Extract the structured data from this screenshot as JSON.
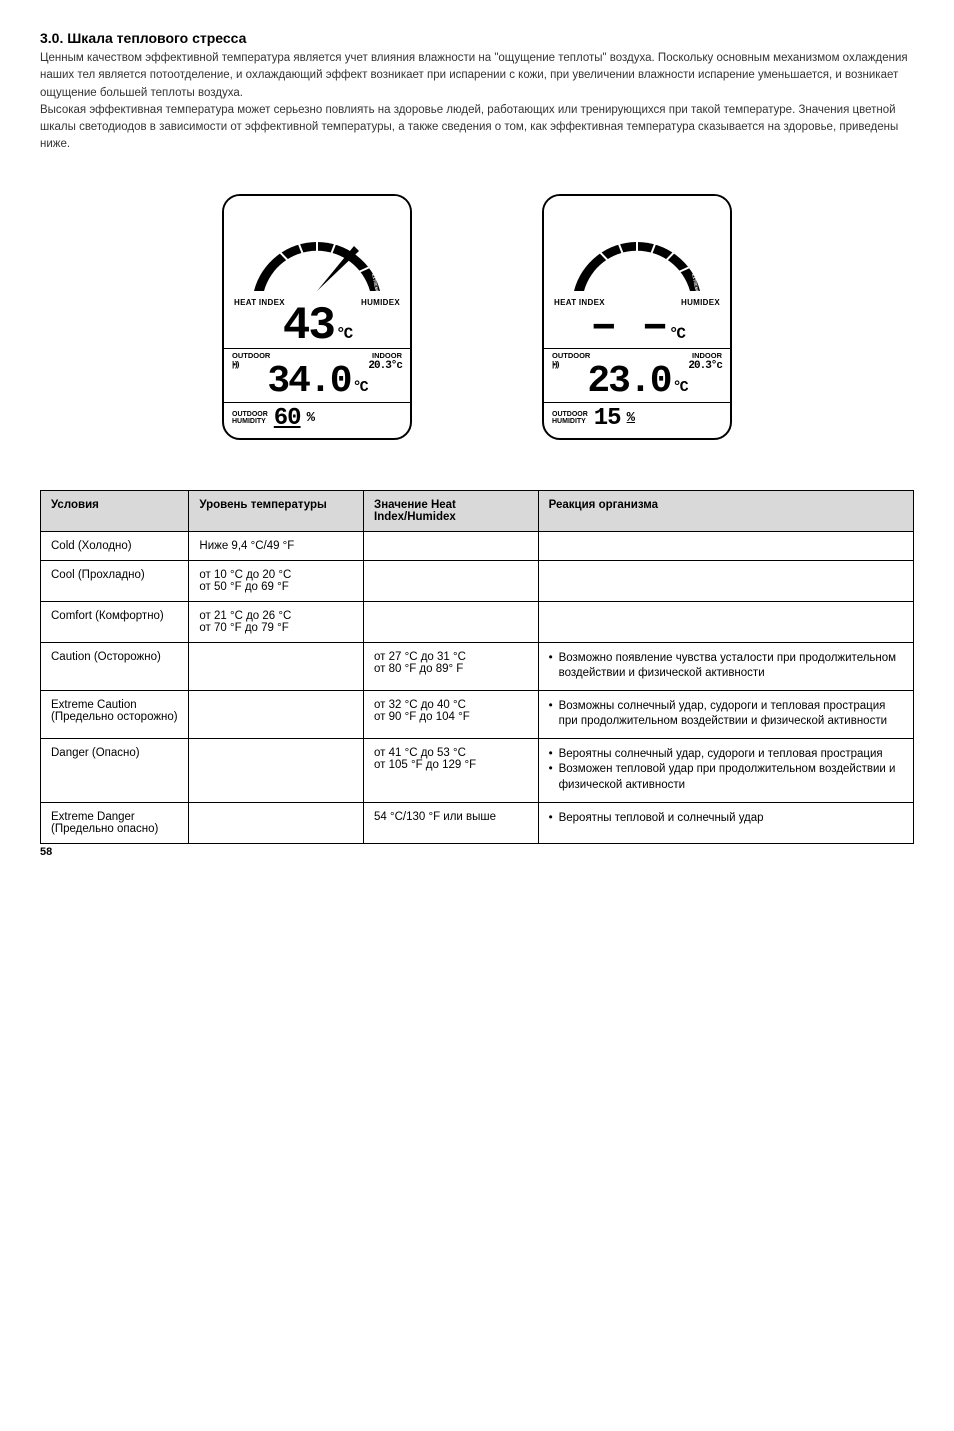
{
  "heading": "3.0. Шкала теплового стресса",
  "paragraphs": [
    "Ценным качеством эффективной температура является учет влияния влажности на \"ощущение теплоты\" воздуха. Поскольку основным механизмом охлаждения наших тел является потоотделение, и охлаждающий эффект возникает при испарении с кожи, при увеличении влажности испарение уменьшается, и возникает ощущение большей теплоты воздуха.",
    "Высокая эффективная температура может серьезно повлиять на здоровье людей, работающих или тренирующихся при такой температуре. Значения цветной шкалы светодиодов в зависимости от эффективной температуры, а также сведения о том, как эффективная температура сказывается на здоровье, приведены ниже."
  ],
  "gauge_zones": [
    "COLD",
    "COOL",
    "COMFORT",
    "CAUTION",
    "EXTREME CAUTION",
    "DANGER",
    "EXTREME DANGER"
  ],
  "device_labels": {
    "heat_index": "HEAT INDEX",
    "humidex": "HUMIDEX",
    "outdoor": "OUTDOOR",
    "indoor": "INDOOR",
    "outdoor_humidity": "OUTDOOR\nHUMIDITY"
  },
  "device1": {
    "main_temp": "43",
    "main_unit": "°C",
    "indoor_temp": "20.3°c",
    "outdoor_temp": "34.0",
    "outdoor_unit": "°C",
    "humidity": "60",
    "humidity_unit": "%"
  },
  "device2": {
    "main_temp": "– –",
    "main_unit": "°C",
    "indoor_temp": "20.3°c",
    "outdoor_temp": "23.0",
    "outdoor_unit": "°C",
    "humidity": "15",
    "humidity_unit": "%"
  },
  "table": {
    "headers": [
      "Условия",
      "Уровень температуры",
      "Значение Heat Index/Humidex",
      "Реакция организма"
    ],
    "rows": [
      {
        "c1": "Cold (Холодно)",
        "c2": "Ниже 9,4 °C/49 °F",
        "c3": "",
        "c4": []
      },
      {
        "c1": "Cool (Прохладно)",
        "c2": "от 10 °C до 20 °C\nот 50 °F до 69 °F",
        "c3": "",
        "c4": []
      },
      {
        "c1": "Comfort (Комфортно)",
        "c2": "от 21 °C до 26 °C\nот 70 °F до 79 °F",
        "c3": "",
        "c4": []
      },
      {
        "c1": "Caution (Осторожно)",
        "c2": "",
        "c3": "от 27 °C до 31 °C\nот 80 °F до 89° F",
        "c4": [
          "Возможно появление чувства усталости при продолжительном воздействии и физической активности"
        ]
      },
      {
        "c1": "Extreme Caution (Предельно осторожно)",
        "c2": "",
        "c3": "от 32 °C до 40 °C\nот 90 °F до 104 °F",
        "c4": [
          "Возможны солнечный удар, судороги и тепловая прострация при продолжительном воздействии и физической активности"
        ]
      },
      {
        "c1": "Danger (Опасно)",
        "c2": "",
        "c3": "от 41 °C до 53 °C\nот 105 °F до 129 °F",
        "c4": [
          "Вероятны солнечный удар, судороги и тепловая прострация",
          "Возможен тепловой удар при продолжительном воздействии и физической активности"
        ]
      },
      {
        "c1": "Extreme Danger (Предельно опасно)",
        "c2": "",
        "c3": "54 °C/130 °F или выше",
        "c4": [
          "Вероятны тепловой и солнечный удар"
        ]
      }
    ]
  },
  "page_number": "58"
}
